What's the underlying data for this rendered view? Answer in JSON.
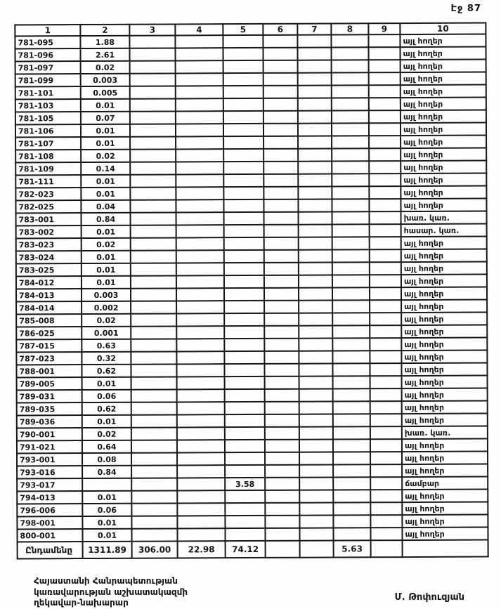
{
  "page": {
    "page_label": "Էջ 87"
  },
  "table": {
    "headers": [
      "1",
      "2",
      "3",
      "4",
      "5",
      "6",
      "7",
      "8",
      "9",
      "10"
    ],
    "rows": [
      [
        "781-095",
        "1.88",
        "",
        "",
        "",
        "",
        "",
        "",
        "",
        "այլ հողեր"
      ],
      [
        "781-096",
        "2.61",
        "",
        "",
        "",
        "",
        "",
        "",
        "",
        "այլ հողեր"
      ],
      [
        "781-097",
        "0.02",
        "",
        "",
        "",
        "",
        "",
        "",
        "",
        "այլ հողեր"
      ],
      [
        "781-099",
        "0.003",
        "",
        "",
        "",
        "",
        "",
        "",
        "",
        "այլ հողեր"
      ],
      [
        "781-101",
        "0.005",
        "",
        "",
        "",
        "",
        "",
        "",
        "",
        "այլ հողեր"
      ],
      [
        "781-103",
        "0.01",
        "",
        "",
        "",
        "",
        "",
        "",
        "",
        "այլ հողեր"
      ],
      [
        "781-105",
        "0.07",
        "",
        "",
        "",
        "",
        "",
        "",
        "",
        "այլ հողեր"
      ],
      [
        "781-106",
        "0.01",
        "",
        "",
        "",
        "",
        "",
        "",
        "",
        "այլ հողեր"
      ],
      [
        "781-107",
        "0.01",
        "",
        "",
        "",
        "",
        "",
        "",
        "",
        "այլ հողեր"
      ],
      [
        "781-108",
        "0.02",
        "",
        "",
        "",
        "",
        "",
        "",
        "",
        "այլ հողեր"
      ],
      [
        "781-109",
        "0.14",
        "",
        "",
        "",
        "",
        "",
        "",
        "",
        "այլ հողեր"
      ],
      [
        "781-111",
        "0.01",
        "",
        "",
        "",
        "",
        "",
        "",
        "",
        "այլ հողեր"
      ],
      [
        "782-023",
        "0.01",
        "",
        "",
        "",
        "",
        "",
        "",
        "",
        "այլ հողեր"
      ],
      [
        "782-025",
        "0.04",
        "",
        "",
        "",
        "",
        "",
        "",
        "",
        "այլ հողեր"
      ],
      [
        "783-001",
        "0.84",
        "",
        "",
        "",
        "",
        "",
        "",
        "",
        "խառ. կառ."
      ],
      [
        "783-002",
        "0.01",
        "",
        "",
        "",
        "",
        "",
        "",
        "",
        "հասար. կառ."
      ],
      [
        "783-023",
        "0.02",
        "",
        "",
        "",
        "",
        "",
        "",
        "",
        "այլ հողեր"
      ],
      [
        "783-024",
        "0.01",
        "",
        "",
        "",
        "",
        "",
        "",
        "",
        "այլ հողեր"
      ],
      [
        "783-025",
        "0.01",
        "",
        "",
        "",
        "",
        "",
        "",
        "",
        "այլ հողեր"
      ],
      [
        "784-012",
        "0.01",
        "",
        "",
        "",
        "",
        "",
        "",
        "",
        "այլ հողեր"
      ],
      [
        "784-013",
        "0.003",
        "",
        "",
        "",
        "",
        "",
        "",
        "",
        "այլ հողեր"
      ],
      [
        "784-014",
        "0.002",
        "",
        "",
        "",
        "",
        "",
        "",
        "",
        "այլ հողեր"
      ],
      [
        "785-008",
        "0.02",
        "",
        "",
        "",
        "",
        "",
        "",
        "",
        "այլ հողեր"
      ],
      [
        "786-025",
        "0.001",
        "",
        "",
        "",
        "",
        "",
        "",
        "",
        "այլ հողեր"
      ],
      [
        "787-015",
        "0.63",
        "",
        "",
        "",
        "",
        "",
        "",
        "",
        "այլ հողեր"
      ],
      [
        "787-023",
        "0.32",
        "",
        "",
        "",
        "",
        "",
        "",
        "",
        "այլ հողեր"
      ],
      [
        "788-001",
        "0.62",
        "",
        "",
        "",
        "",
        "",
        "",
        "",
        "այլ հողեր"
      ],
      [
        "789-005",
        "0.01",
        "",
        "",
        "",
        "",
        "",
        "",
        "",
        "այլ հողեր"
      ],
      [
        "789-031",
        "0.06",
        "",
        "",
        "",
        "",
        "",
        "",
        "",
        "այլ հողեր"
      ],
      [
        "789-035",
        "0.62",
        "",
        "",
        "",
        "",
        "",
        "",
        "",
        "այլ հողեր"
      ],
      [
        "789-036",
        "0.01",
        "",
        "",
        "",
        "",
        "",
        "",
        "",
        "այլ հողեր"
      ],
      [
        "790-001",
        "0.02",
        "",
        "",
        "",
        "",
        "",
        "",
        "",
        "խառ. կառ."
      ],
      [
        "791-021",
        "0.64",
        "",
        "",
        "",
        "",
        "",
        "",
        "",
        "այլ հողեր"
      ],
      [
        "793-001",
        "0.08",
        "",
        "",
        "",
        "",
        "",
        "",
        "",
        "այլ հողեր"
      ],
      [
        "793-016",
        "0.84",
        "",
        "",
        "",
        "",
        "",
        "",
        "",
        "այլ հողեր"
      ],
      [
        "793-017",
        "",
        "",
        "",
        "3.58",
        "",
        "",
        "",
        "",
        "ճամբար"
      ],
      [
        "794-013",
        "0.01",
        "",
        "",
        "",
        "",
        "",
        "",
        "",
        "այլ հողեր"
      ],
      [
        "796-006",
        "0.06",
        "",
        "",
        "",
        "",
        "",
        "",
        "",
        "այլ հողեր"
      ],
      [
        "798-001",
        "0.01",
        "",
        "",
        "",
        "",
        "",
        "",
        "",
        "այլ հողեր"
      ],
      [
        "800-001",
        "0.01",
        "",
        "",
        "",
        "",
        "",
        "",
        "",
        "այլ հողեր"
      ]
    ],
    "total": [
      "Ընդամենը",
      "1311.89",
      "306.00",
      "22.98",
      "74.12",
      "",
      "",
      "5.63",
      "",
      ""
    ]
  },
  "footer": {
    "line1": "Հայաստանի Հանրապետության",
    "line2": "կառավարության աշխատակազմի",
    "line3": "ղեկավար-նախարար",
    "signature": "Մ. Թոփուզյան"
  }
}
